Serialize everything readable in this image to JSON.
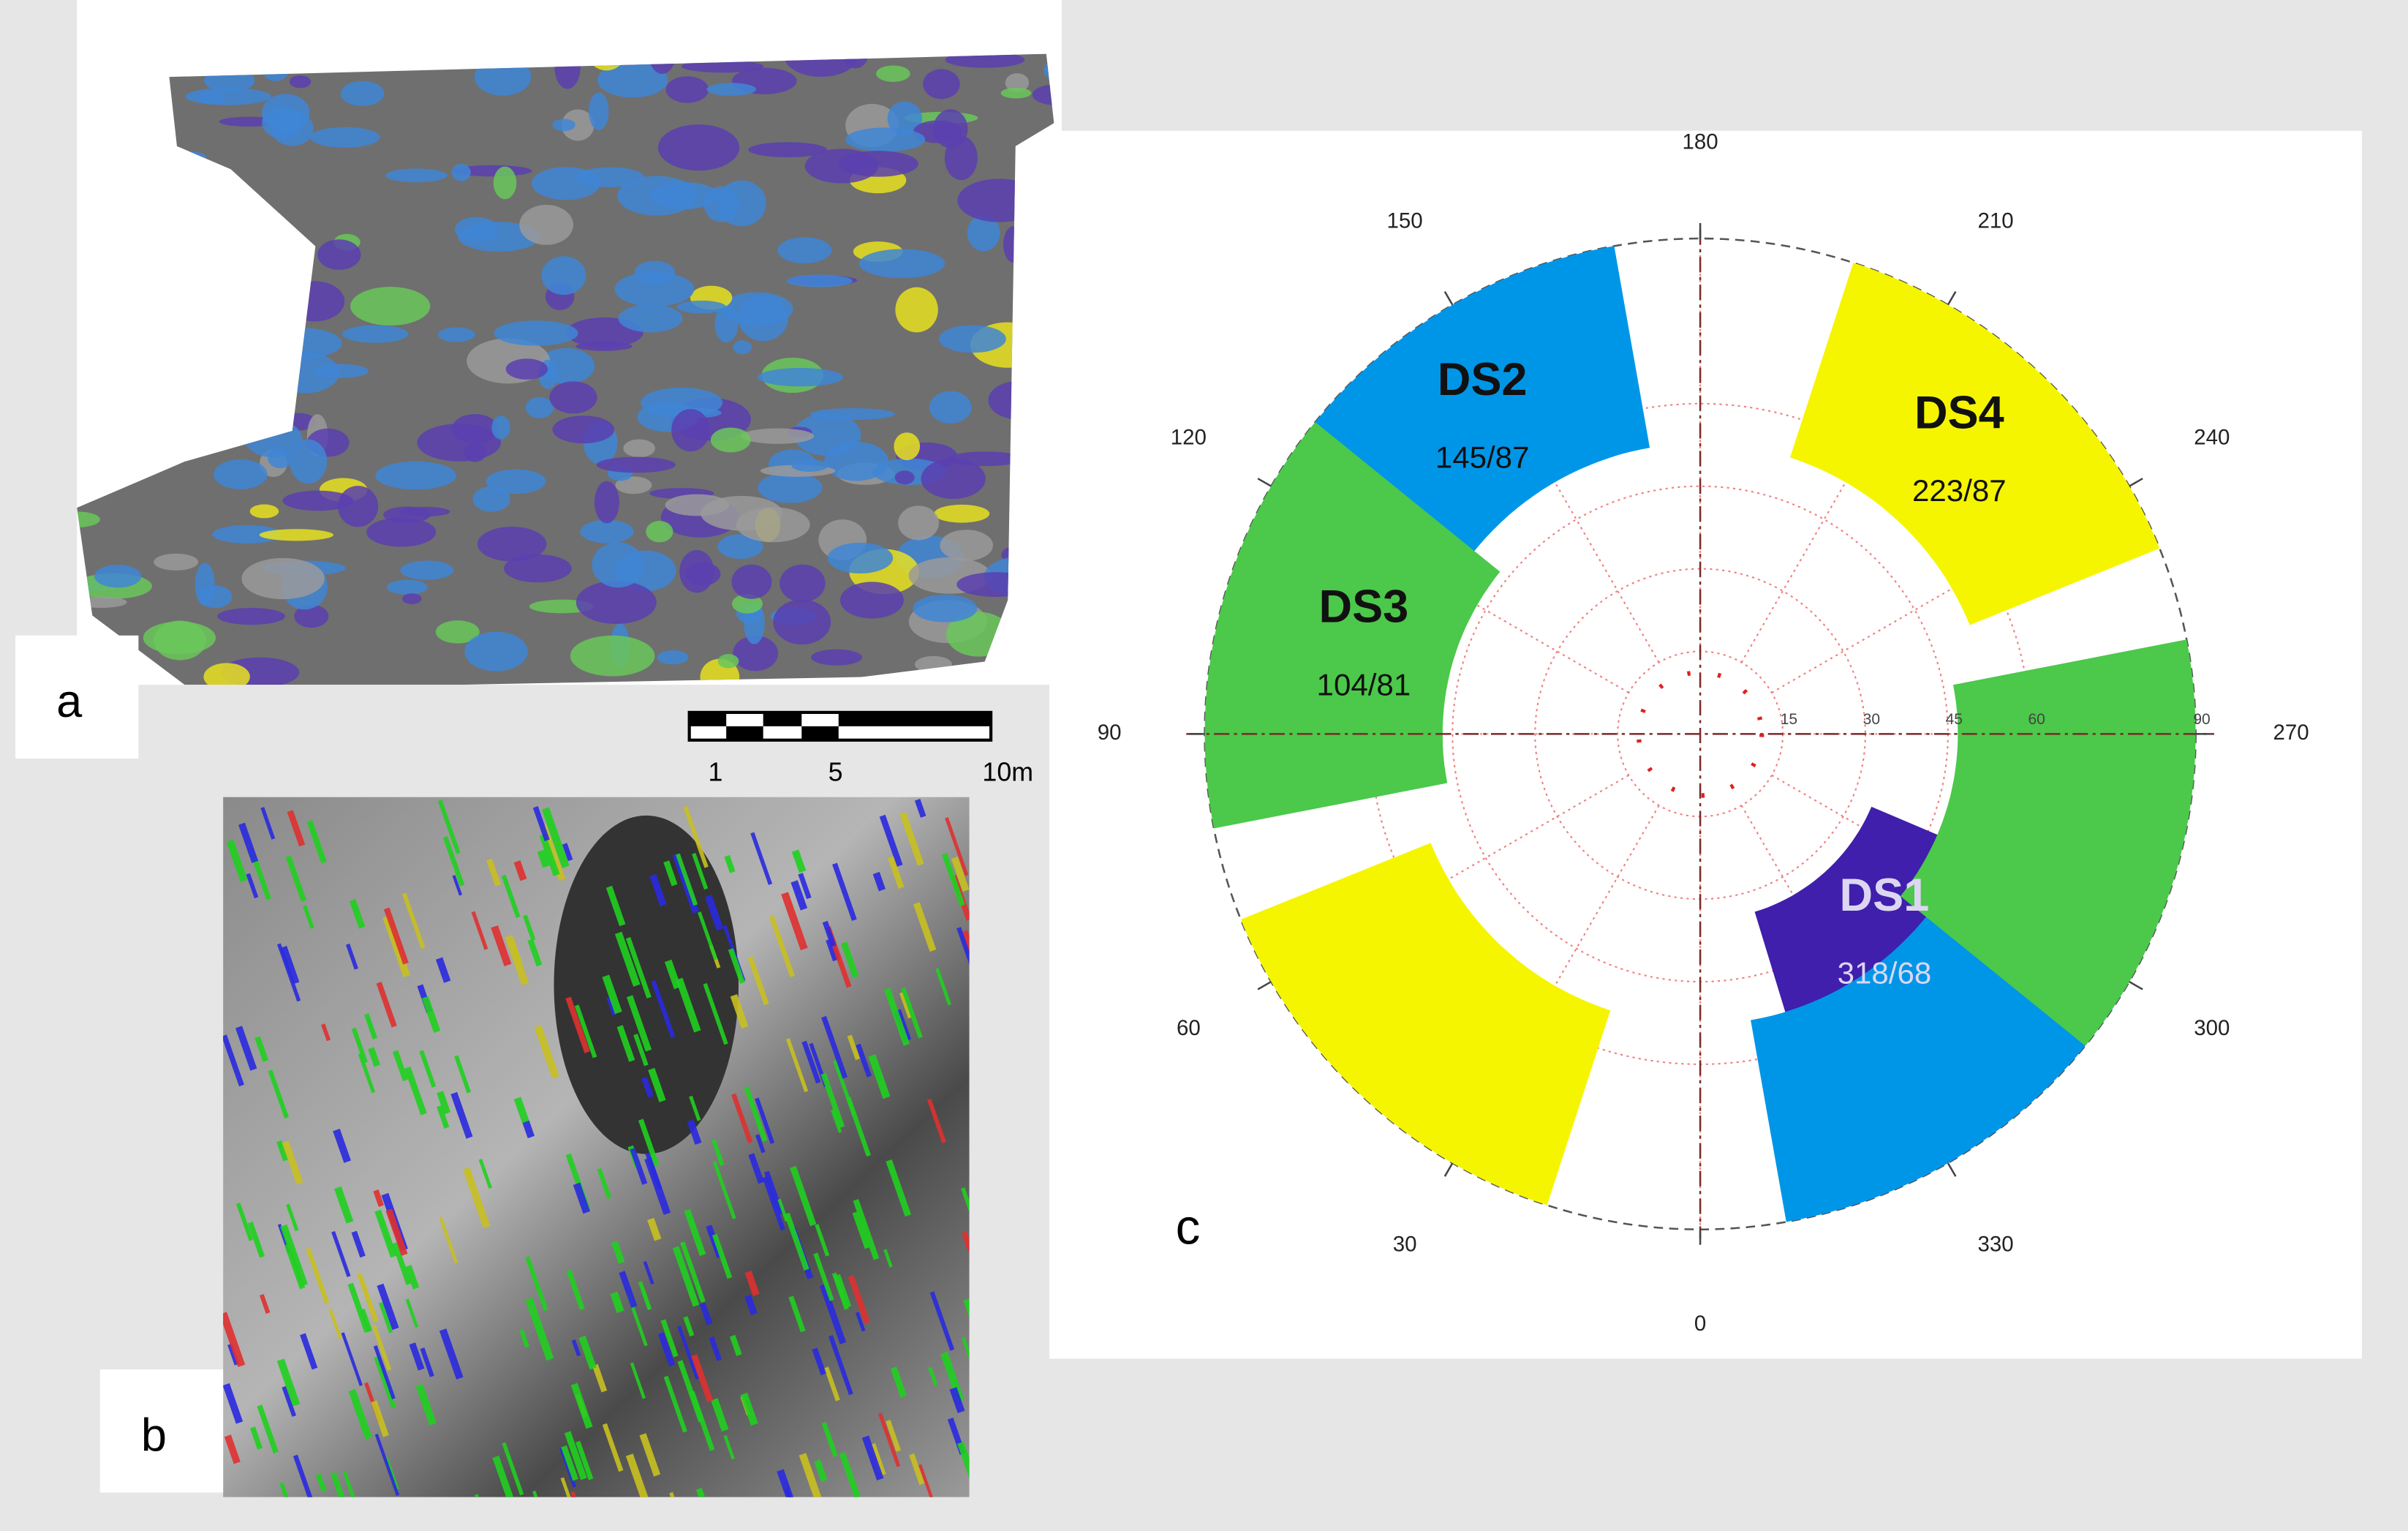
{
  "panels": {
    "a": "a",
    "b": "b",
    "c": "c"
  },
  "scale_bar": {
    "labels": [
      "1",
      "5",
      "10m"
    ]
  },
  "stereonet": {
    "azimuth_ticks": [
      0,
      30,
      60,
      90,
      120,
      150,
      180,
      210,
      240,
      270,
      300,
      330
    ],
    "dip_ticks": [
      15,
      30,
      45,
      60,
      90
    ],
    "sets": [
      {
        "name": "DS1",
        "label": "318/68",
        "dip_direction": 318,
        "dip": 68,
        "color": "#3f1fab",
        "text_color": "#ddd6f2"
      },
      {
        "name": "DS2",
        "label": "145/87",
        "dip_direction": 145,
        "dip": 87,
        "color": "#0096e8",
        "text_color": "#111111"
      },
      {
        "name": "DS3",
        "label": "104/81",
        "dip_direction": 104,
        "dip": 81,
        "color": "#4cc84a",
        "text_color": "#111111"
      },
      {
        "name": "DS4",
        "label": "223/87",
        "dip_direction": 223,
        "dip": 87,
        "color": "#f5f500",
        "text_color": "#111111"
      }
    ]
  }
}
